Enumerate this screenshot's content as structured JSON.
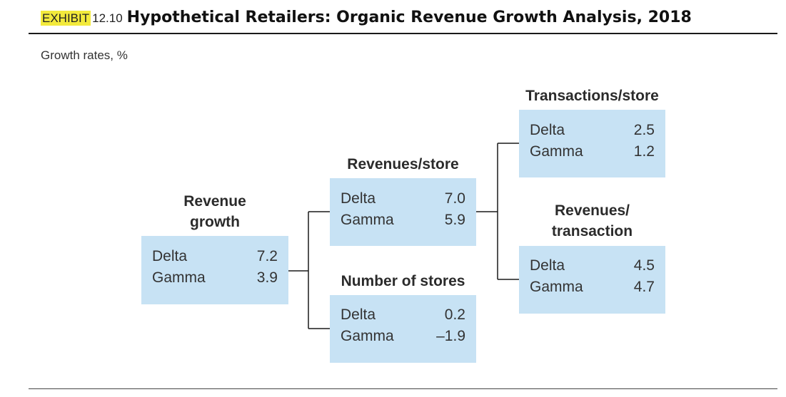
{
  "header": {
    "exhibit_label": "EXHIBIT",
    "exhibit_number": "12.10",
    "title": "Hypothetical Retailers: Organic Revenue Growth Analysis, 2018"
  },
  "subtitle": "Growth rates, %",
  "colors": {
    "box_fill": "#c7e2f4",
    "exhibit_highlight": "#f3ea3c",
    "line": "#1a1a1a"
  },
  "nodes": {
    "revenue_growth": {
      "heading_line1": "Revenue",
      "heading_line2": "growth",
      "rows": [
        {
          "label": "Delta",
          "value": "7.2"
        },
        {
          "label": "Gamma",
          "value": "3.9"
        }
      ]
    },
    "revenues_per_store": {
      "heading": "Revenues/store",
      "rows": [
        {
          "label": "Delta",
          "value": "7.0"
        },
        {
          "label": "Gamma",
          "value": "5.9"
        }
      ]
    },
    "number_of_stores": {
      "heading": "Number of stores",
      "rows": [
        {
          "label": "Delta",
          "value": "0.2"
        },
        {
          "label": "Gamma",
          "value": "–1.9"
        }
      ]
    },
    "transactions_per_store": {
      "heading": "Transactions/store",
      "rows": [
        {
          "label": "Delta",
          "value": "2.5"
        },
        {
          "label": "Gamma",
          "value": "1.2"
        }
      ]
    },
    "revenues_per_transaction": {
      "heading_line1": "Revenues/",
      "heading_line2": "transaction",
      "rows": [
        {
          "label": "Delta",
          "value": "4.5"
        },
        {
          "label": "Gamma",
          "value": "4.7"
        }
      ]
    }
  }
}
